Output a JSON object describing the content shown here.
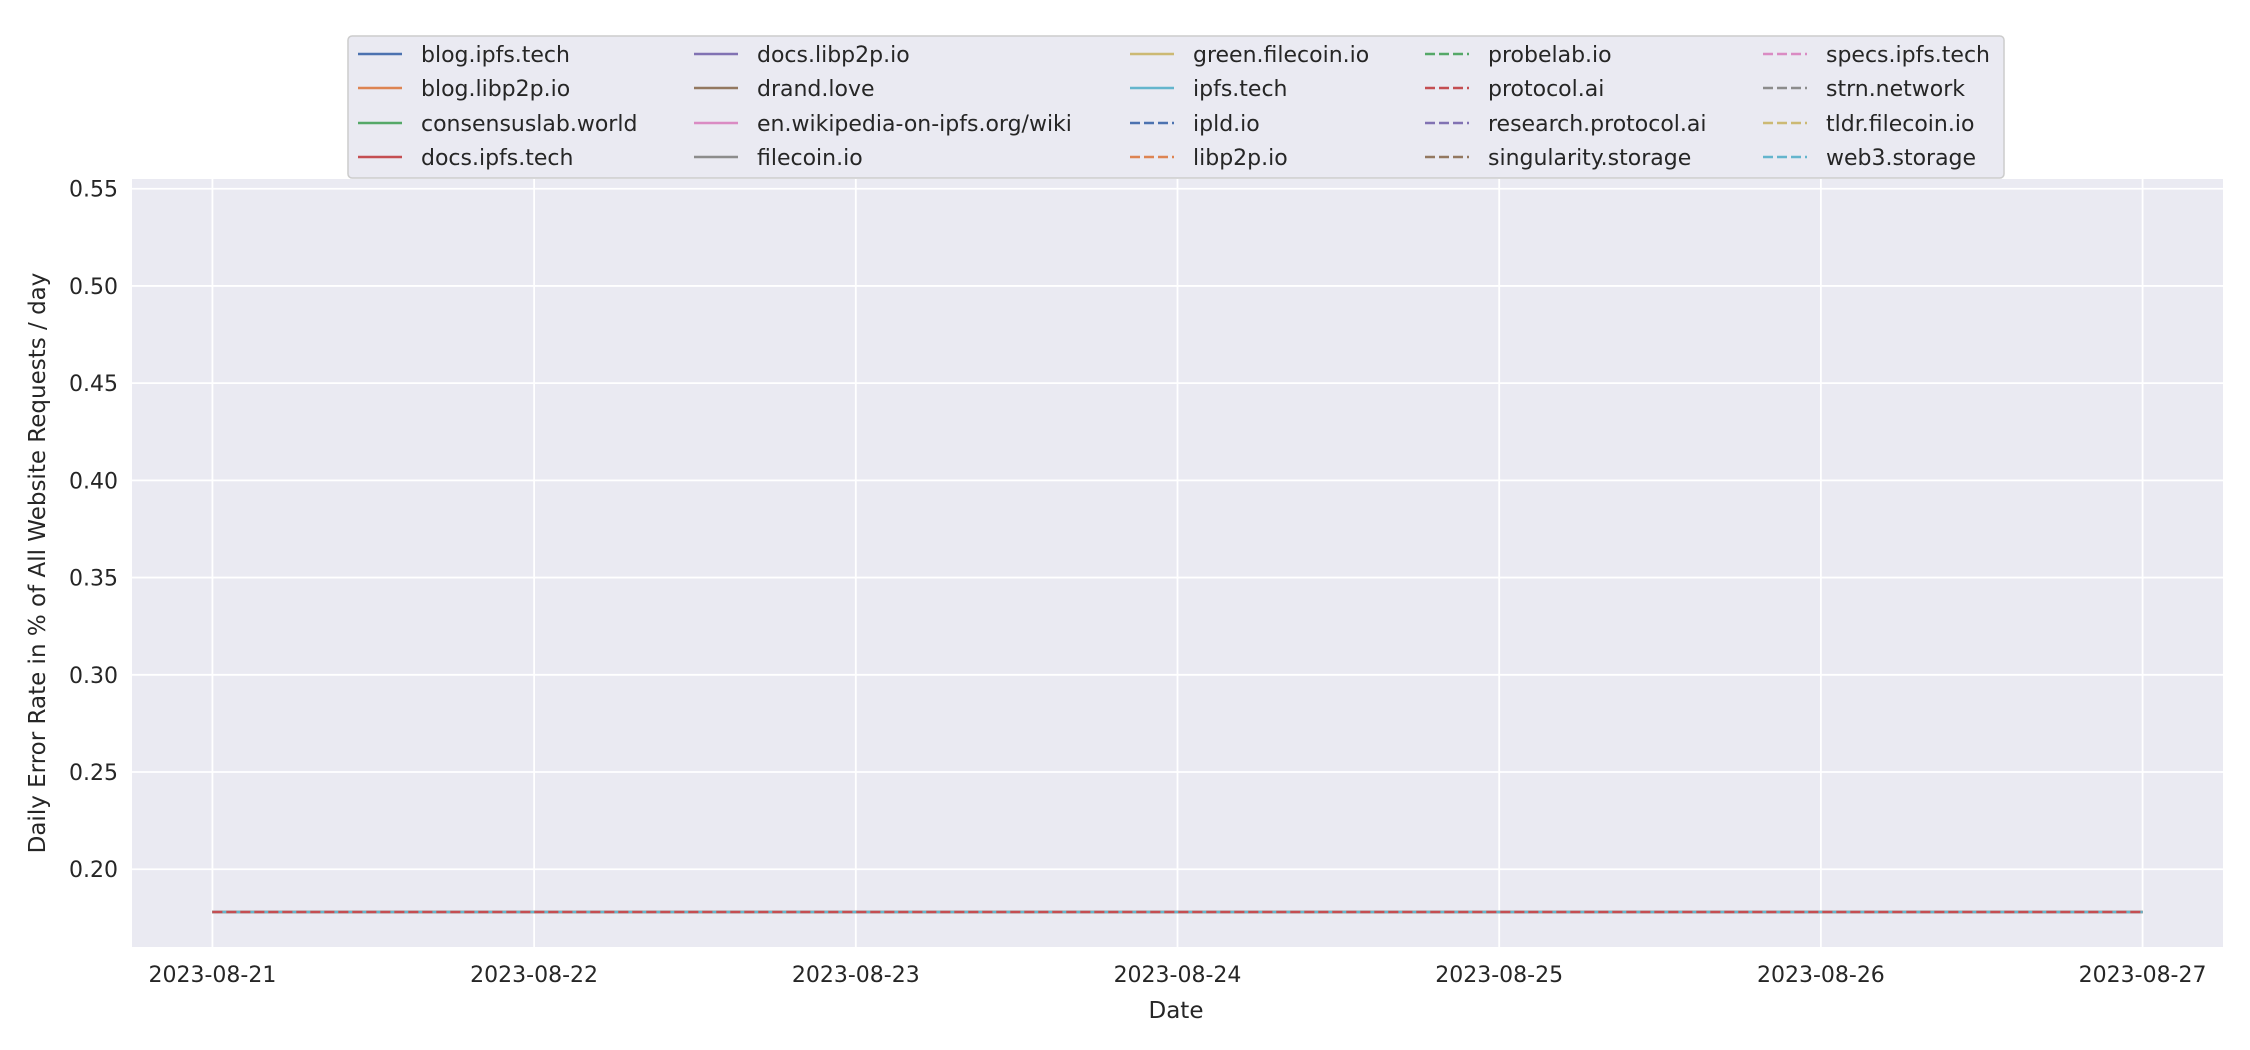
{
  "chart_data": {
    "type": "line",
    "title": "",
    "xlabel": "Date",
    "ylabel": "Daily Error Rate in % of All Website Requests / day",
    "x": [
      "2023-08-21",
      "2023-08-22",
      "2023-08-23",
      "2023-08-24",
      "2023-08-25",
      "2023-08-26",
      "2023-08-27"
    ],
    "xlim": [
      "2023-08-20T18:00",
      "2023-08-27T06:00"
    ],
    "ylim": [
      0.16,
      0.555
    ],
    "yticks": [
      0.2,
      0.25,
      0.3,
      0.35,
      0.4,
      0.45,
      0.5,
      0.55
    ],
    "grid": true,
    "legend_position": "top-center",
    "legend_columns": 5,
    "series": [
      {
        "name": "blog.ipfs.tech",
        "color": "#4c72b0",
        "dash": false,
        "values": [
          0.178,
          0.178,
          0.178,
          0.178,
          0.178,
          0.178,
          0.178
        ]
      },
      {
        "name": "blog.libp2p.io",
        "color": "#dd8452",
        "dash": false,
        "values": [
          0.178,
          0.178,
          0.178,
          0.178,
          0.178,
          0.178,
          0.178
        ]
      },
      {
        "name": "consensuslab.world",
        "color": "#55a868",
        "dash": false,
        "values": [
          0.178,
          0.178,
          0.178,
          0.178,
          0.178,
          0.178,
          0.178
        ]
      },
      {
        "name": "docs.ipfs.tech",
        "color": "#c44e52",
        "dash": false,
        "values": [
          0.178,
          0.178,
          0.178,
          0.178,
          0.178,
          0.178,
          0.178
        ]
      },
      {
        "name": "docs.libp2p.io",
        "color": "#8172b3",
        "dash": false,
        "values": [
          0.178,
          0.178,
          0.178,
          0.178,
          0.178,
          0.178,
          0.178
        ]
      },
      {
        "name": "drand.love",
        "color": "#937860",
        "dash": false,
        "values": [
          0.178,
          0.178,
          0.178,
          0.178,
          0.178,
          0.178,
          0.178
        ]
      },
      {
        "name": "en.wikipedia-on-ipfs.org/wiki",
        "color": "#da8bc3",
        "dash": false,
        "values": [
          0.178,
          0.178,
          0.178,
          0.178,
          0.178,
          0.178,
          0.178
        ]
      },
      {
        "name": "filecoin.io",
        "color": "#8c8c8c",
        "dash": false,
        "values": [
          0.178,
          0.178,
          0.178,
          0.178,
          0.178,
          0.178,
          0.178
        ]
      },
      {
        "name": "green.filecoin.io",
        "color": "#ccb974",
        "dash": false,
        "values": [
          0.178,
          0.178,
          0.178,
          0.178,
          0.178,
          0.178,
          0.178
        ]
      },
      {
        "name": "ipfs.tech",
        "color": "#64b5cd",
        "dash": false,
        "values": [
          0.178,
          0.178,
          0.178,
          0.178,
          0.178,
          0.178,
          0.178
        ]
      },
      {
        "name": "ipld.io",
        "color": "#4c72b0",
        "dash": true,
        "values": [
          0.178,
          0.178,
          0.178,
          0.178,
          0.178,
          0.178,
          0.178
        ]
      },
      {
        "name": "libp2p.io",
        "color": "#dd8452",
        "dash": true,
        "values": [
          0.178,
          0.178,
          0.178,
          0.178,
          0.178,
          0.178,
          0.178
        ]
      },
      {
        "name": "probelab.io",
        "color": "#55a868",
        "dash": true,
        "values": [
          0.178,
          0.178,
          0.178,
          0.178,
          0.178,
          0.178,
          0.178
        ]
      },
      {
        "name": "protocol.ai",
        "color": "#c44e52",
        "dash": true,
        "values": [
          0.178,
          0.178,
          0.178,
          0.178,
          0.178,
          0.178,
          0.178
        ]
      },
      {
        "name": "research.protocol.ai",
        "color": "#8172b3",
        "dash": true,
        "values": [
          0.178,
          0.178,
          0.178,
          0.178,
          0.178,
          0.178,
          0.178
        ]
      },
      {
        "name": "singularity.storage",
        "color": "#937860",
        "dash": true,
        "values": [
          0.178,
          0.178,
          0.178,
          0.178,
          0.178,
          0.178,
          0.178
        ]
      },
      {
        "name": "specs.ipfs.tech",
        "color": "#da8bc3",
        "dash": true,
        "values": [
          0.178,
          0.178,
          0.178,
          0.178,
          0.178,
          0.178,
          0.178
        ]
      },
      {
        "name": "strn.network",
        "color": "#8c8c8c",
        "dash": true,
        "values": [
          null,
          0.178,
          0.178,
          0.178,
          0.178,
          null,
          null
        ]
      },
      {
        "name": "tldr.filecoin.io",
        "color": "#ccb974",
        "dash": true,
        "values": [
          0.178,
          0.178,
          0.178,
          0.178,
          0.178,
          0.178,
          0.178
        ]
      },
      {
        "name": "web3.storage",
        "color": "#64b5cd",
        "dash": true,
        "values": [
          0.178,
          0.178,
          0.178,
          0.178,
          0.178,
          0.178,
          0.178
        ]
      }
    ],
    "top_series": "protocol.ai",
    "colors": {
      "plot_background": "#eaeaf2",
      "grid": "#ffffff",
      "legend_background": "#eaeaf2",
      "legend_border": "#cccccc"
    }
  }
}
